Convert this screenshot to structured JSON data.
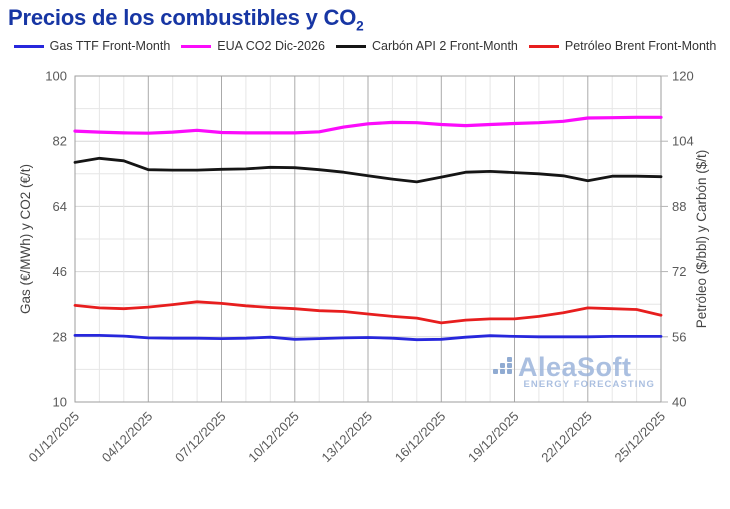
{
  "title": {
    "text": "Precios de los combustibles y CO",
    "subscript": "2"
  },
  "watermark": {
    "name": "AleaSoft",
    "tagline": "ENERGY FORECASTING",
    "color": "#9cb4db"
  },
  "chart_data": {
    "type": "line",
    "x": [
      "01/12/2025",
      "02/12/2025",
      "03/12/2025",
      "04/12/2025",
      "05/12/2025",
      "06/12/2025",
      "07/12/2025",
      "08/12/2025",
      "09/12/2025",
      "10/12/2025",
      "11/12/2025",
      "12/12/2025",
      "13/12/2025",
      "14/12/2025",
      "15/12/2025",
      "16/12/2025",
      "17/12/2025",
      "18/12/2025",
      "19/12/2025",
      "20/12/2025",
      "21/12/2025",
      "22/12/2025",
      "23/12/2025",
      "24/12/2025",
      "25/12/2025"
    ],
    "x_labels_shown": [
      "01/12/2025",
      "04/12/2025",
      "07/12/2025",
      "10/12/2025",
      "13/12/2025",
      "16/12/2025",
      "19/12/2025",
      "22/12/2025",
      "25/12/2025"
    ],
    "left_axis": {
      "label": "Gas (€/MWh) y CO2 (€/t)",
      "min": 10,
      "max": 100,
      "ticks": [
        10,
        28,
        46,
        64,
        82,
        100
      ]
    },
    "right_axis": {
      "label": "Petróleo ($/bbl) y Carbón ($/t)",
      "min": 40,
      "max": 120,
      "ticks": [
        40,
        56,
        72,
        88,
        104,
        120
      ]
    },
    "grid": {
      "h_step": 9,
      "v_major_every": 3,
      "grid_on": true
    },
    "legend_position": "top",
    "series": [
      {
        "name": "Gas TTF Front-Month",
        "axis": "left",
        "unit": "€/MWh",
        "color": "#2727dc",
        "width": 2.8,
        "values": [
          28.4,
          28.4,
          28.2,
          27.7,
          27.6,
          27.6,
          27.5,
          27.6,
          27.9,
          27.3,
          27.5,
          27.7,
          27.8,
          27.6,
          27.2,
          27.3,
          27.9,
          28.3,
          28.1,
          28.0,
          28.0,
          28.0,
          28.1,
          28.1,
          28.1
        ]
      },
      {
        "name": "EUA CO2 Dic-2026",
        "axis": "left",
        "unit": "€/t",
        "color": "#fb0cfb",
        "width": 3.2,
        "values": [
          84.8,
          84.5,
          84.3,
          84.2,
          84.5,
          85.0,
          84.4,
          84.3,
          84.3,
          84.3,
          84.6,
          85.9,
          86.8,
          87.2,
          87.1,
          86.6,
          86.3,
          86.6,
          86.9,
          87.1,
          87.5,
          88.4,
          88.5,
          88.6,
          88.6
        ]
      },
      {
        "name": "Carbón API 2 Front-Month",
        "axis": "right",
        "unit": "$/t",
        "color": "#151515",
        "width": 2.8,
        "values": [
          98.8,
          99.8,
          99.2,
          97.0,
          96.9,
          96.9,
          97.1,
          97.2,
          97.6,
          97.5,
          97.0,
          96.4,
          95.5,
          94.7,
          94.0,
          95.2,
          96.4,
          96.6,
          96.3,
          96.0,
          95.5,
          94.3,
          95.4,
          95.4,
          95.3
        ]
      },
      {
        "name": "Petróleo Brent Front-Month",
        "axis": "right",
        "unit": "$/bbl",
        "color": "#e71e1e",
        "width": 2.8,
        "values": [
          63.7,
          63.1,
          62.9,
          63.3,
          63.9,
          64.6,
          64.2,
          63.6,
          63.2,
          62.9,
          62.4,
          62.2,
          61.6,
          61.0,
          60.6,
          59.4,
          60.1,
          60.4,
          60.4,
          61.0,
          61.9,
          63.1,
          62.9,
          62.7,
          61.3
        ]
      }
    ]
  }
}
